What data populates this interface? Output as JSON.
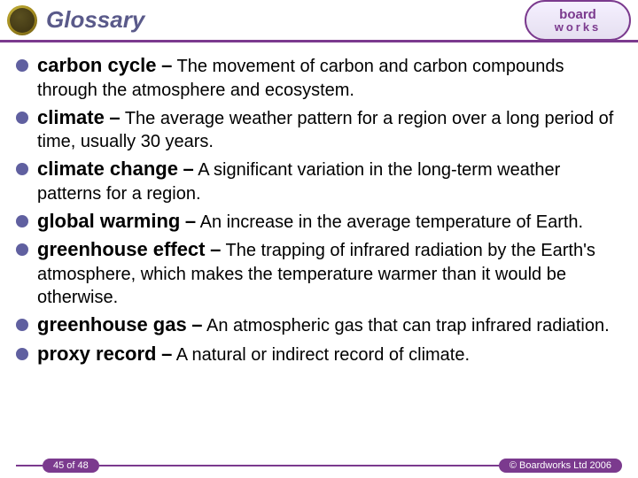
{
  "header": {
    "title": "Glossary",
    "logo_top": "board",
    "logo_bot": "works"
  },
  "entries": [
    {
      "term": "carbon cycle",
      "def": "The movement of carbon and carbon compounds through the atmosphere and ecosystem."
    },
    {
      "term": "climate",
      "def": "The average weather pattern for a region over a long period of time, usually 30 years."
    },
    {
      "term": "climate change",
      "def": "A significant variation in the long-term weather patterns for a region."
    },
    {
      "term": "global warming",
      "def": "An increase in the average temperature of Earth."
    },
    {
      "term": "greenhouse effect",
      "def": "The trapping of infrared radiation by the Earth's atmosphere, which makes the temperature warmer than it would be otherwise."
    },
    {
      "term": "greenhouse gas",
      "def": "An atmospheric gas that can trap infrared radiation."
    },
    {
      "term": "proxy record",
      "def": "A natural or indirect record of climate."
    }
  ],
  "footer": {
    "page": "45 of 48",
    "copyright": "© Boardworks Ltd 2006"
  },
  "colors": {
    "accent": "#7b3a8e",
    "bullet": "#6060a0",
    "title": "#5a5a8a"
  }
}
